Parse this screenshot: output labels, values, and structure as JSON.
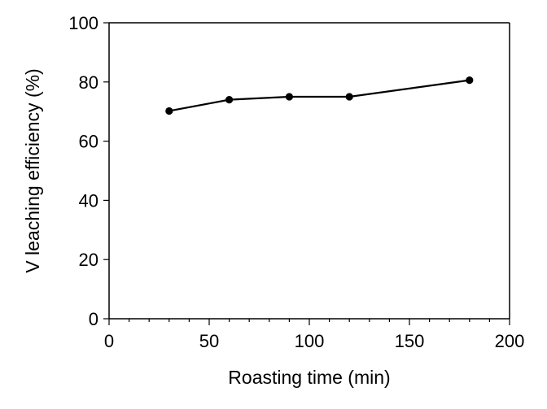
{
  "chart_data": {
    "type": "line",
    "title": "",
    "xlabel": "Roasting time (min)",
    "ylabel": "V leaching efficiency (%)",
    "xlim": [
      0,
      200
    ],
    "ylim": [
      0,
      100
    ],
    "x_major_ticks": [
      0,
      50,
      100,
      150,
      200
    ],
    "x_tick_labels": [
      "0",
      "50",
      "100",
      "150",
      "200"
    ],
    "x_minor_ticks": [
      10,
      20,
      30,
      40,
      60,
      70,
      80,
      90,
      110,
      120,
      130,
      140,
      160,
      170,
      180,
      190
    ],
    "y_major_ticks": [
      0,
      20,
      40,
      60,
      80,
      100
    ],
    "y_tick_labels": [
      "0",
      "20",
      "40",
      "60",
      "80",
      "100"
    ],
    "grid": false,
    "legend": "none",
    "series": [
      {
        "name": "V leaching efficiency",
        "x": [
          30,
          60,
          90,
          120,
          180
        ],
        "values": [
          70.2,
          74.0,
          75.0,
          75.0,
          80.6
        ],
        "color": "#000000",
        "marker": "circle"
      }
    ]
  }
}
